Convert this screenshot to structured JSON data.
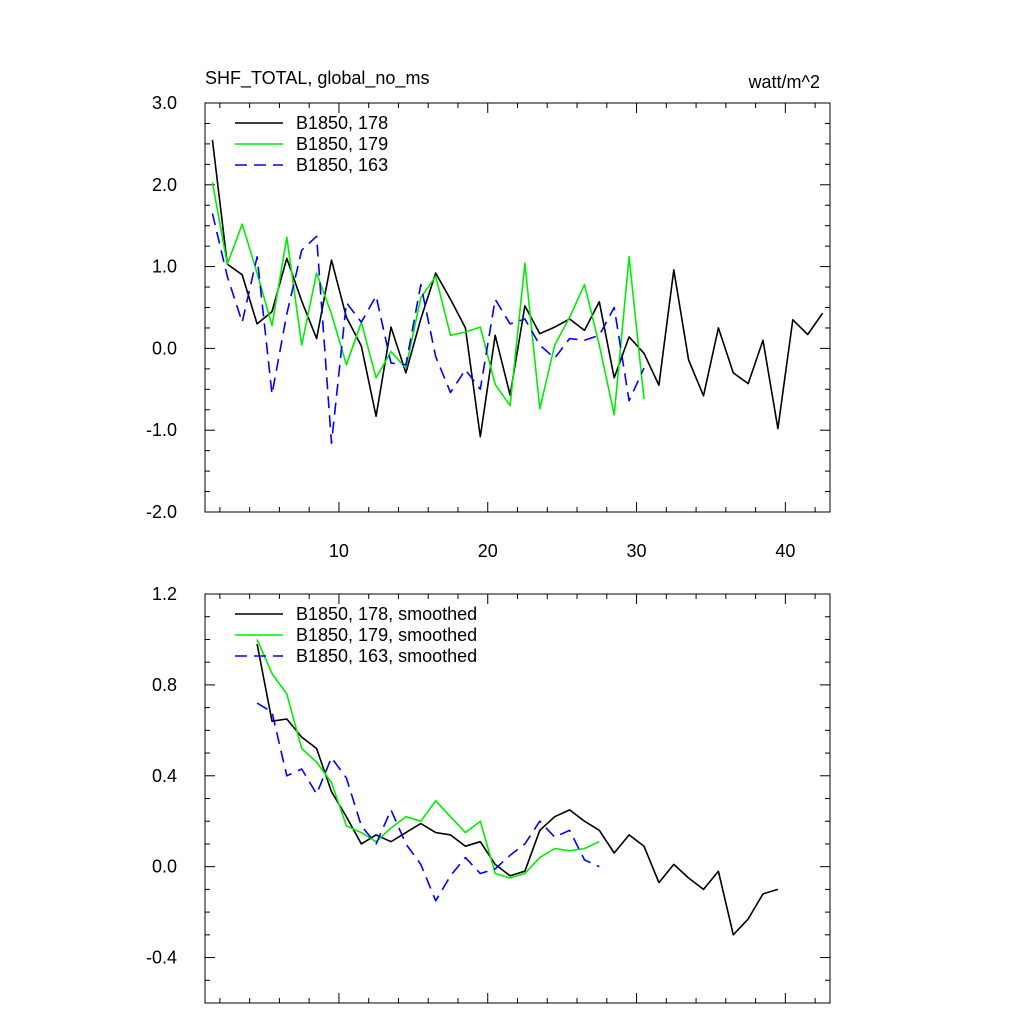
{
  "chart_data": [
    {
      "type": "line",
      "title": "SHF_TOTAL, global_no_ms",
      "units": "watt/m^2",
      "xlim": [
        1,
        43
      ],
      "ylim": [
        -2.0,
        3.0
      ],
      "x_ticks": [
        10,
        20,
        30,
        40
      ],
      "x_tick_labels": [
        "10",
        "20",
        "30",
        "40"
      ],
      "y_ticks": [
        -2.0,
        -1.0,
        0.0,
        1.0,
        2.0,
        3.0
      ],
      "y_tick_labels": [
        "-2.0",
        "-1.0",
        "0.0",
        "1.0",
        "2.0",
        "3.0"
      ],
      "legend_position": "top-left",
      "series": [
        {
          "name": "B1850, 178",
          "color": "#000000",
          "dash": "solid",
          "x": [
            1.5,
            2.5,
            3.5,
            4.5,
            5.5,
            6.5,
            7.5,
            8.5,
            9.5,
            10.5,
            11.5,
            12.5,
            13.5,
            14.5,
            15.5,
            16.5,
            17.5,
            18.5,
            19.5,
            20.5,
            21.5,
            22.5,
            23.5,
            24.5,
            25.5,
            26.5,
            27.5,
            28.5,
            29.5,
            30.5,
            31.5,
            32.5,
            33.5,
            34.5,
            35.5,
            36.5,
            37.5,
            38.5,
            39.5,
            40.5,
            41.5,
            42.5
          ],
          "values": [
            2.55,
            1.03,
            0.9,
            0.3,
            0.45,
            1.1,
            0.58,
            0.12,
            1.08,
            0.38,
            0.03,
            -0.83,
            0.26,
            -0.3,
            0.36,
            0.92,
            0.6,
            0.25,
            -1.08,
            0.16,
            -0.57,
            0.52,
            0.18,
            0.26,
            0.36,
            0.22,
            0.57,
            -0.36,
            0.14,
            -0.06,
            -0.45,
            0.96,
            -0.14,
            -0.58,
            0.25,
            -0.3,
            -0.43,
            0.1,
            -0.98,
            0.35,
            0.17,
            0.43
          ]
        },
        {
          "name": "B1850, 179",
          "color": "#00ee00",
          "dash": "solid",
          "x": [
            1.5,
            2.5,
            3.5,
            4.5,
            5.5,
            6.5,
            7.5,
            8.5,
            9.5,
            10.5,
            11.5,
            12.5,
            13.5,
            14.5,
            15.5,
            16.5,
            17.5,
            18.5,
            19.5,
            20.5,
            21.5,
            22.5,
            23.5,
            24.5,
            25.5,
            26.5,
            27.5,
            28.5,
            29.5,
            30.5
          ],
          "values": [
            2.03,
            1.03,
            1.52,
            0.92,
            0.28,
            1.36,
            0.04,
            0.92,
            0.42,
            -0.2,
            0.32,
            -0.36,
            -0.04,
            -0.24,
            0.62,
            0.88,
            0.16,
            0.2,
            0.26,
            -0.44,
            -0.7,
            1.04,
            -0.74,
            0.04,
            0.38,
            0.78,
            0.04,
            -0.81,
            1.12,
            -0.62
          ]
        },
        {
          "name": "B1850, 163",
          "color": "#0000ff",
          "dash": "dashed",
          "x": [
            1.5,
            2.5,
            3.5,
            4.5,
            5.5,
            6.5,
            7.5,
            8.5,
            9.5,
            10.5,
            11.5,
            12.5,
            13.5,
            14.5,
            15.5,
            16.5,
            17.5,
            18.5,
            19.5,
            20.5,
            21.5,
            22.5,
            23.5,
            24.5,
            25.5,
            26.5,
            27.5,
            28.5,
            29.5,
            30.5
          ],
          "values": [
            1.65,
            0.88,
            0.32,
            1.12,
            -0.56,
            0.42,
            1.2,
            1.37,
            -1.16,
            0.56,
            0.32,
            0.64,
            -0.18,
            -0.2,
            0.78,
            -0.1,
            -0.54,
            -0.26,
            -0.5,
            0.6,
            0.3,
            0.36,
            0.04,
            -0.12,
            0.12,
            0.1,
            0.16,
            0.5,
            -0.64,
            -0.24
          ]
        }
      ]
    },
    {
      "type": "line",
      "xlim": [
        1,
        43
      ],
      "ylim": [
        -0.6,
        1.2
      ],
      "x_ticks": [
        10,
        20,
        30,
        40
      ],
      "y_ticks": [
        -0.4,
        0.0,
        0.4,
        0.8,
        1.2
      ],
      "y_tick_labels": [
        "-0.4",
        "0.0",
        "0.4",
        "0.8",
        "1.2"
      ],
      "legend_position": "top-left",
      "series": [
        {
          "name": "B1850, 178, smoothed",
          "color": "#000000",
          "dash": "solid",
          "x": [
            4.5,
            5.5,
            6.5,
            7.5,
            8.5,
            9.5,
            10.5,
            11.5,
            12.5,
            13.5,
            14.5,
            15.5,
            16.5,
            17.5,
            18.5,
            19.5,
            20.5,
            21.5,
            22.5,
            23.5,
            24.5,
            25.5,
            26.5,
            27.5,
            28.5,
            29.5,
            30.5,
            31.5,
            32.5,
            33.5,
            34.5,
            35.5,
            36.5,
            37.5,
            38.5,
            39.5
          ],
          "values": [
            0.98,
            0.64,
            0.65,
            0.57,
            0.52,
            0.33,
            0.22,
            0.1,
            0.14,
            0.11,
            0.15,
            0.19,
            0.15,
            0.14,
            0.09,
            0.11,
            0.01,
            -0.04,
            -0.02,
            0.16,
            0.22,
            0.25,
            0.2,
            0.16,
            0.06,
            0.14,
            0.09,
            -0.07,
            0.01,
            -0.05,
            -0.1,
            -0.02,
            -0.3,
            -0.23,
            -0.12,
            -0.1
          ]
        },
        {
          "name": "B1850, 179, smoothed",
          "color": "#00ee00",
          "dash": "solid",
          "x": [
            4.5,
            5.5,
            6.5,
            7.5,
            8.5,
            9.5,
            10.5,
            11.5,
            12.5,
            13.5,
            14.5,
            15.5,
            16.5,
            17.5,
            18.5,
            19.5,
            20.5,
            21.5,
            22.5,
            23.5,
            24.5,
            25.5,
            26.5,
            27.5
          ],
          "values": [
            1.0,
            0.85,
            0.76,
            0.52,
            0.46,
            0.37,
            0.18,
            0.15,
            0.11,
            0.17,
            0.22,
            0.2,
            0.29,
            0.22,
            0.15,
            0.2,
            -0.03,
            -0.05,
            -0.03,
            0.04,
            0.08,
            0.07,
            0.08,
            0.11
          ]
        },
        {
          "name": "B1850, 163, smoothed",
          "color": "#0000ff",
          "dash": "dashed",
          "x": [
            4.5,
            5.5,
            6.5,
            7.5,
            8.5,
            9.5,
            10.5,
            11.5,
            12.5,
            13.5,
            14.5,
            15.5,
            16.5,
            17.5,
            18.5,
            19.5,
            20.5,
            21.5,
            22.5,
            23.5,
            24.5,
            25.5,
            26.5,
            27.5
          ],
          "values": [
            0.72,
            0.68,
            0.4,
            0.43,
            0.32,
            0.48,
            0.39,
            0.18,
            0.1,
            0.25,
            0.1,
            0.01,
            -0.15,
            -0.04,
            0.04,
            -0.03,
            -0.01,
            0.05,
            0.1,
            0.2,
            0.13,
            0.16,
            0.03,
            0.0
          ]
        }
      ]
    }
  ]
}
